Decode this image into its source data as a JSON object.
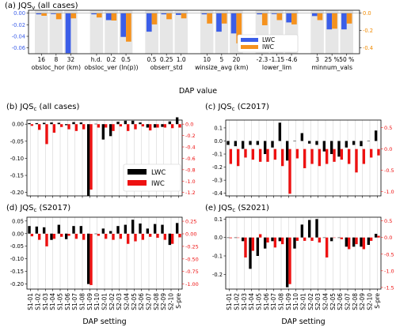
{
  "chart_data": [
    {
      "id": "a",
      "type": "bar",
      "title": "(a) JQS",
      "title_sub": "v",
      "title_suffix": " (all cases)",
      "xlabel": "DAP value",
      "left_axis": {
        "ylim": [
          -0.07,
          0.005
        ],
        "ticks": [
          "0.00",
          "-0.02",
          "-0.04",
          "-0.06"
        ],
        "tick_values": [
          0,
          -0.02,
          -0.04,
          -0.06
        ],
        "color": "#3b5ee8"
      },
      "right_axis": {
        "ylim": [
          -0.47,
          0.034
        ],
        "ticks": [
          "0.0",
          "-0.2",
          "-0.4"
        ],
        "tick_values": [
          0,
          -0.2,
          -0.4
        ],
        "color": "#f08a00"
      },
      "groups": [
        {
          "name": "obsloc_hor (km)",
          "ticks": [
            "16",
            "8",
            "32"
          ],
          "lwc": [
            -0.002,
            -0.0015,
            -0.069
          ],
          "iwc": [
            -0.03,
            -0.07,
            -0.06
          ]
        },
        {
          "name": "obsloc_ver (ln(p))",
          "ticks": [
            "h.d.",
            "0.2",
            "0.5"
          ],
          "lwc": [
            -0.002,
            -0.012,
            -0.041
          ],
          "iwc": [
            -0.05,
            -0.085,
            -0.33
          ]
        },
        {
          "name": "obserr_std",
          "ticks": [
            "0.5",
            "0.25",
            "1.0"
          ],
          "lwc": [
            -0.032,
            -0.002,
            -0.003
          ],
          "iwc": [
            -0.13,
            -0.07,
            -0.06
          ]
        },
        {
          "name": "winsize_avg (km)",
          "ticks": [
            "10",
            "5",
            "20"
          ],
          "lwc": [
            -0.002,
            -0.032,
            -0.035
          ],
          "iwc": [
            -0.12,
            -0.12,
            -0.35
          ]
        },
        {
          "name": "lower_lim",
          "ticks": [
            "-2.3",
            "-1.15",
            "-4.6"
          ],
          "lwc": [
            -0.002,
            -0.0015,
            -0.016
          ],
          "iwc": [
            -0.14,
            -0.08,
            -0.13
          ]
        },
        {
          "name": "minnum_vals",
          "ticks": [
            "3",
            "25 %",
            "50 %"
          ],
          "lwc": [
            -0.005,
            -0.028,
            -0.028
          ],
          "iwc": [
            -0.08,
            -0.18,
            -0.12
          ]
        }
      ],
      "legend": [
        "LWC",
        "IWC"
      ],
      "colors": {
        "lwc": "#3b5ee8",
        "iwc": "#f5921e",
        "shade": "#e6e6e6"
      }
    },
    {
      "id": "b",
      "type": "bar",
      "title": "(b) JQS",
      "title_sub": "c",
      "title_suffix": " (all cases)",
      "left_axis": {
        "ylim": [
          -0.21,
          0.012
        ],
        "ticks": [
          "0.00",
          "-0.05",
          "-0.10",
          "-0.15",
          "-0.20"
        ],
        "tick_values": [
          0,
          -0.05,
          -0.1,
          -0.15,
          -0.2
        ]
      },
      "right_axis": {
        "ylim": [
          -1.26,
          0.072
        ],
        "ticks": [
          "0.0",
          "-0.2",
          "-0.4",
          "-0.6",
          "-0.8",
          "-1.0",
          "-1.2"
        ],
        "tick_values": [
          0,
          -0.2,
          -0.4,
          -0.6,
          -0.8,
          -1.0,
          -1.2
        ]
      },
      "lwc": [
        0.003,
        0.003,
        0.004,
        0.005,
        0.004,
        -0.003,
        0.006,
        0.005,
        -0.21,
        0.001,
        -0.045,
        -0.035,
        0.007,
        0.01,
        0.01,
        0.005,
        -0.01,
        -0.01,
        -0.008,
        0.008,
        0.02
      ],
      "iwc": [
        -0.03,
        -0.1,
        -0.35,
        -0.15,
        -0.05,
        -0.09,
        -0.12,
        -0.09,
        -1.15,
        -0.06,
        -0.06,
        -0.12,
        -0.04,
        -0.12,
        -0.09,
        -0.04,
        -0.11,
        -0.06,
        -0.06,
        -0.07,
        -0.06
      ],
      "legend": [
        "LWC",
        "IWC"
      ]
    },
    {
      "id": "c",
      "type": "bar",
      "title": "(c) JQS",
      "title_sub": "c",
      "title_suffix": " (C2017)",
      "left_axis": {
        "ylim": [
          -0.42,
          0.16
        ],
        "ticks": [
          "0.1",
          "0.0",
          "-0.1",
          "-0.2",
          "-0.3",
          "-0.4"
        ],
        "tick_values": [
          0.1,
          0,
          -0.1,
          -0.2,
          -0.3,
          -0.4
        ]
      },
      "right_axis": {
        "ylim": [
          -1.1,
          0.68
        ],
        "ticks": [
          "0.5",
          "0.0",
          "-0.5",
          "-1.0"
        ],
        "tick_values": [
          0.5,
          0,
          -0.5,
          -1.0
        ]
      },
      "lwc": [
        -0.03,
        -0.04,
        -0.06,
        -0.03,
        -0.03,
        -0.1,
        -0.05,
        0.14,
        -0.15,
        0.0,
        0.06,
        -0.02,
        -0.03,
        -0.08,
        -0.1,
        -0.12,
        -0.05,
        -0.03,
        -0.04,
        0.0,
        0.08
      ],
      "iwc": [
        -0.35,
        -0.4,
        -0.2,
        -0.25,
        -0.3,
        -0.3,
        -0.25,
        -0.4,
        -1.05,
        -0.22,
        -0.45,
        -0.35,
        -0.4,
        -0.35,
        -0.3,
        -0.25,
        -0.35,
        -0.55,
        -0.35,
        -0.2,
        -0.15
      ],
      "legend": [
        "LWC",
        "IWC"
      ]
    },
    {
      "id": "d",
      "type": "bar",
      "title": "(d) JQS",
      "title_sub": "c",
      "title_suffix": " (S2017)",
      "left_axis": {
        "ylim": [
          -0.22,
          0.065
        ],
        "ticks": [
          "0.05",
          "0.00",
          "-0.05",
          "-0.10",
          "-0.15",
          "-0.20"
        ],
        "tick_values": [
          0.05,
          0,
          -0.05,
          -0.1,
          -0.15,
          -0.2
        ]
      },
      "right_axis": {
        "ylim": [
          -1.1,
          0.33
        ],
        "ticks": [
          "0.25",
          "0.00",
          "-0.25",
          "-0.50",
          "-0.75",
          "-1.00"
        ],
        "tick_values": [
          0.25,
          0,
          -0.25,
          -0.5,
          -0.75,
          -1.0
        ]
      },
      "lwc": [
        0.03,
        0.028,
        0.025,
        -0.025,
        0.035,
        -0.022,
        0.03,
        0.03,
        -0.2,
        0.0,
        0.02,
        0.01,
        0.03,
        0.035,
        0.055,
        0.04,
        0.02,
        0.038,
        0.035,
        -0.045,
        0.042
      ],
      "iwc": [
        -0.05,
        -0.12,
        -0.25,
        -0.1,
        -0.06,
        -0.04,
        -0.1,
        -0.12,
        -1.02,
        -0.04,
        -0.1,
        -0.12,
        -0.1,
        -0.2,
        -0.15,
        -0.12,
        -0.06,
        -0.08,
        -0.12,
        -0.2,
        -0.07
      ],
      "legend": [
        "LWC",
        "IWC"
      ]
    },
    {
      "id": "e",
      "type": "bar",
      "title": "(e) JQS",
      "title_sub": "c",
      "title_suffix": " (S2021)",
      "left_axis": {
        "ylim": [
          -0.28,
          0.11
        ],
        "ticks": [
          "0.1",
          "0.0",
          "-0.1",
          "-0.2"
        ],
        "tick_values": [
          0.1,
          0,
          -0.1,
          -0.2
        ]
      },
      "right_axis": {
        "ylim": [
          -1.55,
          0.61
        ],
        "ticks": [
          "0.5",
          "0.0",
          "-0.5",
          "-1.0",
          "-1.5"
        ],
        "tick_values": [
          0.5,
          0,
          -0.5,
          -1.0,
          -1.5
        ]
      },
      "lwc": [
        0.0,
        0.0,
        -0.02,
        -0.17,
        -0.1,
        -0.06,
        -0.02,
        -0.02,
        -0.27,
        -0.06,
        0.07,
        0.095,
        0.1,
        0.0,
        -0.02,
        0.0,
        -0.05,
        -0.05,
        -0.05,
        -0.04,
        0.02
      ],
      "iwc": [
        -0.02,
        0.0,
        -0.6,
        -0.4,
        0.1,
        -0.15,
        -0.3,
        -0.2,
        -1.4,
        -0.1,
        -0.1,
        -0.1,
        -0.15,
        -0.6,
        0.0,
        -0.05,
        -0.35,
        -0.2,
        -0.35,
        -0.1,
        0.05
      ],
      "legend": [
        "LWC",
        "IWC"
      ]
    }
  ],
  "x_settings": [
    "S1-01",
    "S1-02",
    "S1-03",
    "S1-04",
    "S1-05",
    "S1-06",
    "S1-07",
    "S1-08",
    "S1-09",
    "S1-10",
    "S2-01",
    "S2-02",
    "S2-03",
    "S2-04",
    "S2-05",
    "S2-06",
    "S2-07",
    "S2-08",
    "S2-09",
    "S2-10",
    "S-pre"
  ],
  "x_axis_label": "DAP setting",
  "legend_bcd": {
    "lwc_label": "LWC",
    "iwc_label": "IWC",
    "lwc_color": "#000000",
    "iwc_color": "#ee1111"
  }
}
